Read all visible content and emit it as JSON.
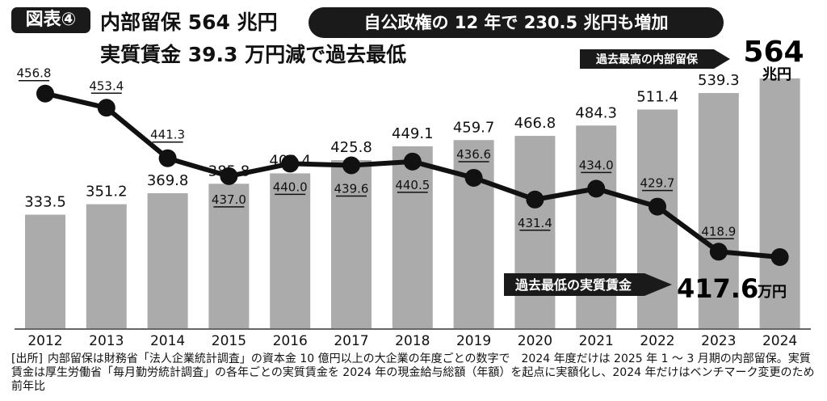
{
  "header": {
    "badge": "図表④",
    "title_line1": "内部留保 564 兆円",
    "title_line2": "実質賃金 39.3 万円減で過去最低",
    "subtitle": "自公政権の 12 年で 230.5 兆円も増加"
  },
  "callouts": {
    "max_reserve_label": "過去最高の内部留保",
    "max_reserve_value": "564",
    "max_reserve_unit": "兆円",
    "min_wage_label": "過去最低の実質賃金",
    "min_wage_value": "417.6",
    "min_wage_unit": "万円"
  },
  "footnote": {
    "source_tag": "[出所]",
    "text": "内部留保は財務省「法人企業統計調査」の資本金 10 億円以上の大企業の年度ごとの数字で　2024 年度だけは 2025 年 1 ～ 3 月期の内部留保。実質賃金は厚生労働省「毎月勤労統計調査」の各年ごとの実質賃金を 2024 年の現金給与総額（年額）を起点に実額化し、2024 年だけはベンチマーク変更のため前年比"
  },
  "chart_data": {
    "type": "bar",
    "categories": [
      "2012",
      "2013",
      "2014",
      "2015",
      "2016",
      "2017",
      "2018",
      "2019",
      "2020",
      "2021",
      "2022",
      "2023",
      "2024"
    ],
    "series": [
      {
        "type": "bar",
        "values": [
          333.5,
          351.2,
          369.8,
          385.8,
          403.4,
          425.8,
          449.1,
          459.7,
          466.8,
          484.3,
          511.4,
          539.3,
          564
        ],
        "labels": [
          "333.5",
          "351.2",
          "369.8",
          "385.8",
          "403.4",
          "425.8",
          "449.1",
          "459.7",
          "466.8",
          "484.3",
          "511.4",
          "539.3",
          ""
        ]
      },
      {
        "type": "line",
        "values": [
          456.8,
          453.4,
          441.3,
          437.0,
          440.0,
          439.6,
          440.5,
          436.6,
          431.4,
          434.0,
          429.7,
          418.9,
          417.6
        ],
        "labels": [
          "456.8",
          "453.4",
          "441.3",
          "437.0",
          "440.0",
          "439.6",
          "440.5",
          "436.6",
          "431.4",
          "434.0",
          "429.7",
          "418.9",
          ""
        ]
      }
    ],
    "colors": {
      "bar": "#ababab",
      "line": "#111111",
      "axis": "#666666"
    }
  }
}
